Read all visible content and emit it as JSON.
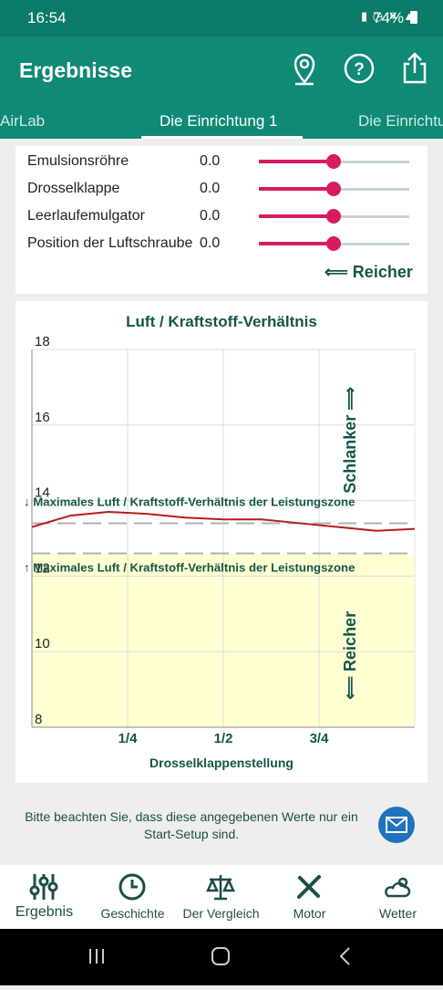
{
  "status_bar": {
    "time": "16:54",
    "battery": "74%"
  },
  "app_bar": {
    "title": "Ergebnisse"
  },
  "tabs": [
    "AirLab",
    "Die Einrichtung 1",
    "Die Einrichtu"
  ],
  "settings": {
    "rows": [
      {
        "label": "Emulsionsröhre",
        "value": "0.0"
      },
      {
        "label": "Drosselklappe",
        "value": "0.0"
      },
      {
        "label": "Leerlaufemulgator",
        "value": "0.0"
      },
      {
        "label": "Position der Luftschraube",
        "value": "0.0"
      }
    ],
    "direction": "⟸ Reicher"
  },
  "chart_data": {
    "type": "line",
    "title": "Luft / Kraftstoff-Verhältnis",
    "xlabel": "Drosselklappenstellung",
    "x": [
      0,
      0.1,
      0.2,
      0.3,
      0.4,
      0.5,
      0.6,
      0.7,
      0.8,
      0.9,
      1.0
    ],
    "series": [
      {
        "color": "#b71c1c",
        "values": [
          13.3,
          13.6,
          13.7,
          13.65,
          13.55,
          13.5,
          13.5,
          13.4,
          13.3,
          13.2,
          13.25
        ]
      }
    ],
    "xlim": [
      0,
      1
    ],
    "xticks": [
      {
        "value": 0.25,
        "label": "1/4"
      },
      {
        "value": 0.5,
        "label": "1/2"
      },
      {
        "value": 0.75,
        "label": "3/4"
      }
    ],
    "ylim": [
      8,
      18
    ],
    "yticks": [
      8,
      10,
      12,
      14,
      16,
      18
    ],
    "grid": true,
    "reference_lines": [
      {
        "value": 13.4,
        "label": "↓ Maximales Luft / Kraftstoff-Verhältnis der Leistungszone"
      },
      {
        "value": 12.6,
        "label": "↑ Maximales Luft / Kraftstoff-Verhältnis der Leistungszone"
      }
    ],
    "zone_color": "#ffffd2",
    "annotations": [
      "Schlanker ⟹",
      "⟸ Reicher"
    ]
  },
  "note": "Bitte beachten Sie, dass diese angegebenen Werte nur ein Start-Setup sind.",
  "nav": [
    "Ergebnis",
    "Geschichte",
    "Der Vergleich",
    "Motor",
    "Wetter"
  ]
}
